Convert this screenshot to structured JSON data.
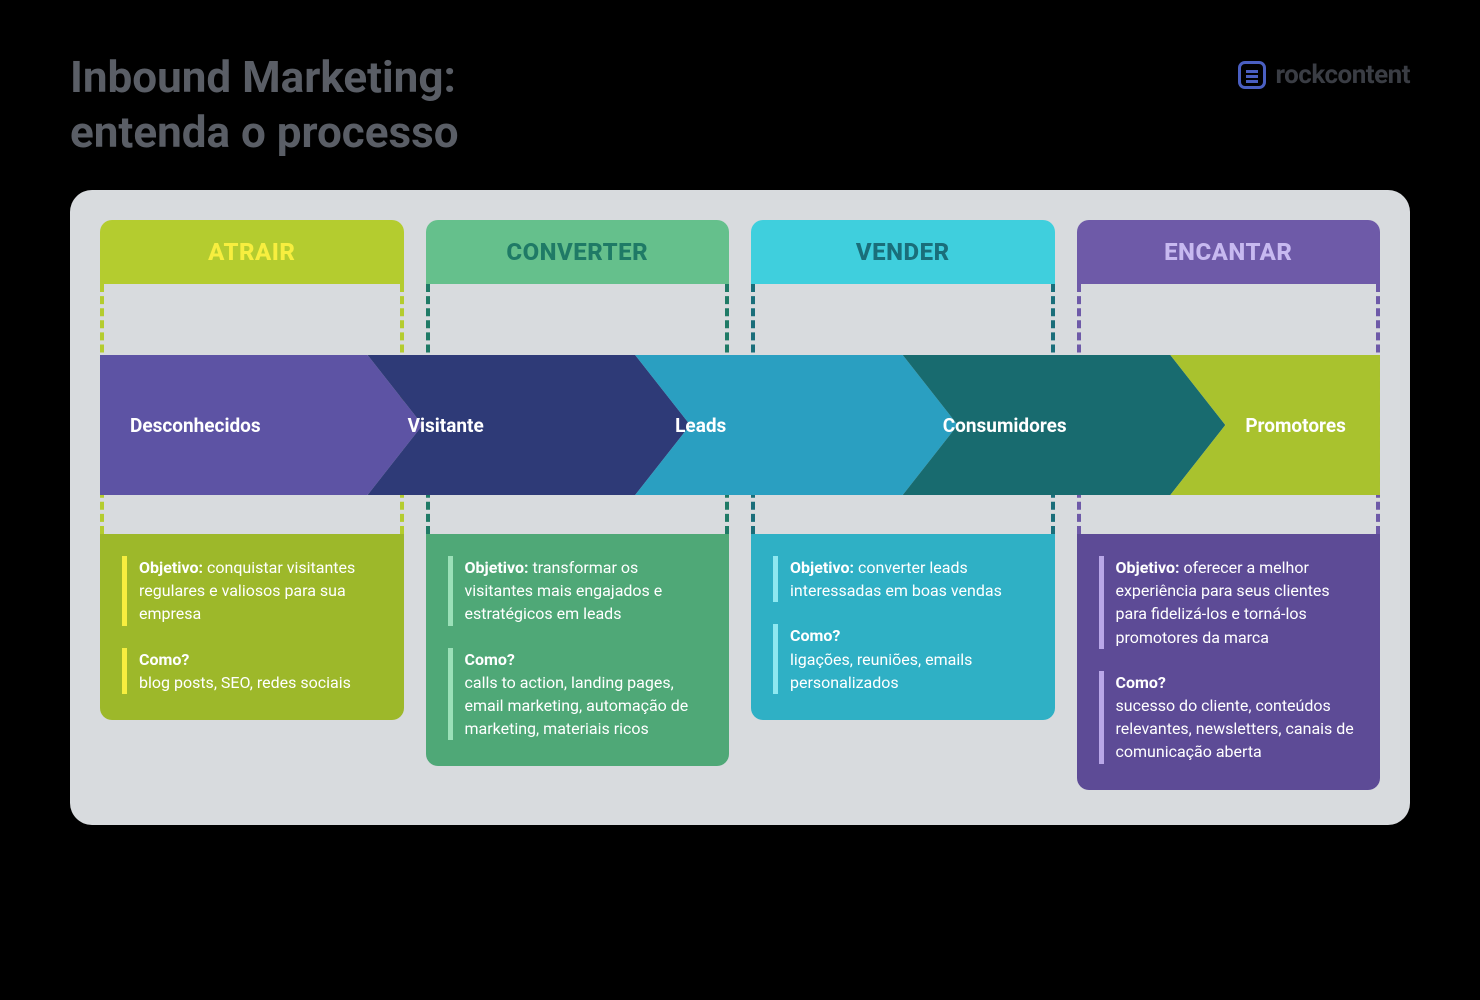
{
  "title_line1": "Inbound Marketing:",
  "title_line2": "entenda o processo",
  "brand": "rockcontent",
  "panel_bg": "#d8dbde",
  "stages": [
    {
      "header": "ATRAIR",
      "header_bg": "#b4cc2f",
      "header_text_color": "#f7ee3f",
      "dash_color": "#b4cc2f",
      "card_bg": "#9db82a",
      "accent": "#f7ee3f",
      "objetivo_label": "Objetivo:",
      "objetivo_text": "conquistar visitantes regulares e valiosos para sua empresa",
      "como_label": "Como?",
      "como_text": "blog posts, SEO, redes sociais"
    },
    {
      "header": "CONVERTER",
      "header_bg": "#65c08c",
      "header_text_color": "#1f7a66",
      "dash_color": "#1f7a66",
      "card_bg": "#4fa877",
      "accent": "#9be0b8",
      "objetivo_label": "Objetivo:",
      "objetivo_text": "transformar os visitantes mais engajados e estratégicos em leads",
      "como_label": "Como?",
      "como_text": "calls to action, landing pages, email marketing, automação de marketing, materiais ricos"
    },
    {
      "header": "VENDER",
      "header_bg": "#3fcfdd",
      "header_text_color": "#1a6e7a",
      "dash_color": "#1a6e7a",
      "card_bg": "#2fb0c5",
      "accent": "#8ee8f0",
      "objetivo_label": "Objetivo:",
      "objetivo_text": "converter leads interessadas em boas vendas",
      "como_label": "Como?",
      "como_text": "ligações, reuniões, emails personalizados"
    },
    {
      "header": "ENCANTAR",
      "header_bg": "#6e5aa8",
      "header_text_color": "#c7b9f0",
      "dash_color": "#6e5aa8",
      "card_bg": "#5d4b96",
      "accent": "#b9a7e8",
      "objetivo_label": "Objetivo:",
      "objetivo_text": "oferecer a melhor experiência para seus clientes para fidelizá-los e torná-los promotores da marca",
      "como_label": "Como?",
      "como_text": "sucesso do cliente, conteúdos relevantes, newsletters, canais de comunicação aberta"
    }
  ],
  "arrows": [
    {
      "label": "Desconhecidos",
      "bg": "#5d53a4"
    },
    {
      "label": "Visitante",
      "bg": "#2e3a77"
    },
    {
      "label": "Leads",
      "bg": "#2a9fc1"
    },
    {
      "label": "Consumidores",
      "bg": "#186b6f"
    },
    {
      "label": "Promotores",
      "bg": "#a9c22e"
    }
  ]
}
